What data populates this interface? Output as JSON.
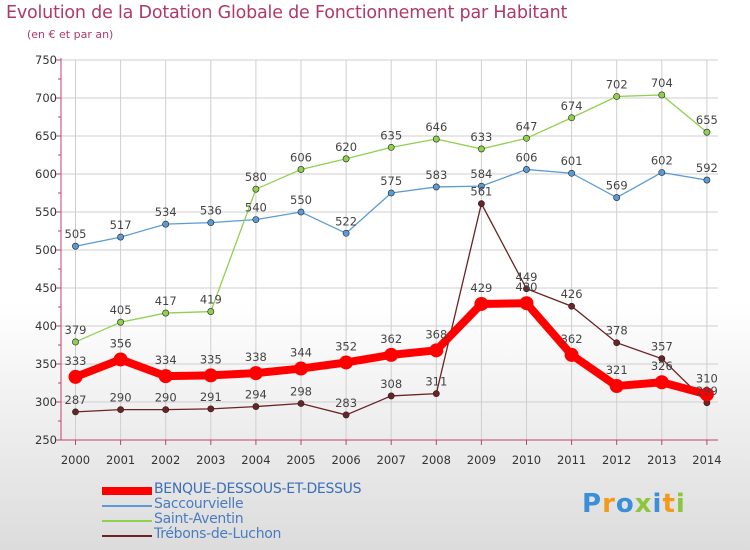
{
  "chart_data": {
    "type": "line",
    "title": "Evolution de la Dotation Globale de Fonctionnement par Habitant",
    "subtitle": "(en € et par an)",
    "x": [
      "2000",
      "2001",
      "2002",
      "2003",
      "2004",
      "2005",
      "2006",
      "2007",
      "2008",
      "2009",
      "2010",
      "2011",
      "2012",
      "2013",
      "2014"
    ],
    "ylim": [
      250,
      750
    ],
    "yticks": [
      "250",
      "300",
      "350",
      "400",
      "450",
      "500",
      "550",
      "600",
      "650",
      "700",
      "750"
    ],
    "grid": true,
    "legend_position": "bottom-left",
    "series": [
      {
        "name": "BENQUE-DESSOUS-ET-DESSUS",
        "color": "#ff0000",
        "emphasis": true,
        "values": [
          333,
          356,
          334,
          335,
          338,
          344,
          352,
          362,
          368,
          429,
          430,
          362,
          321,
          326,
          310
        ]
      },
      {
        "name": "Saccourvielle",
        "color": "#5b9bd5",
        "values": [
          505,
          517,
          534,
          536,
          540,
          550,
          522,
          575,
          583,
          584,
          606,
          601,
          569,
          602,
          592
        ]
      },
      {
        "name": "Saint-Aventin",
        "color": "#8fd14f",
        "values": [
          379,
          405,
          417,
          419,
          580,
          606,
          620,
          635,
          646,
          633,
          647,
          674,
          702,
          704,
          655
        ]
      },
      {
        "name": "Trébons-de-Luchon",
        "color": "#6b2323",
        "values": [
          287,
          290,
          290,
          291,
          294,
          298,
          283,
          308,
          311,
          561,
          449,
          426,
          378,
          357,
          299
        ]
      }
    ]
  },
  "logo": {
    "text": "Proxiti",
    "letters": [
      {
        "char": "P",
        "color": "#3a8fd8"
      },
      {
        "char": "r",
        "color": "#f39a1e"
      },
      {
        "char": "o",
        "color": "#3a8fd8"
      },
      {
        "char": "x",
        "color": "#8cc63f"
      },
      {
        "char": "i",
        "color": "#3a8fd8"
      },
      {
        "char": "t",
        "color": "#f39a1e"
      },
      {
        "char": "i",
        "color": "#8cc63f"
      }
    ]
  }
}
